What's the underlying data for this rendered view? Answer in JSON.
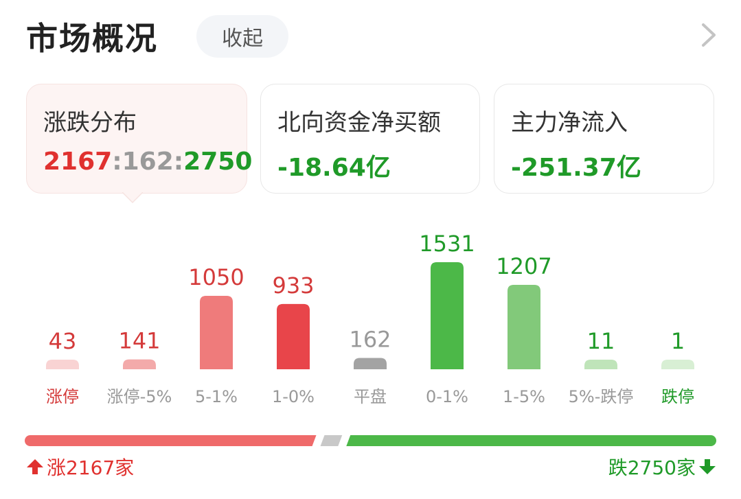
{
  "header": {
    "title": "市场概况",
    "collapse_label": "收起"
  },
  "cards": [
    {
      "label": "涨跌分布",
      "up": "2167",
      "sep1": ":",
      "flat": "162",
      "sep2": ":",
      "down": "2750"
    },
    {
      "label": "北向资金净买额",
      "value": "-18.64亿"
    },
    {
      "label": "主力净流入",
      "value": "-251.37亿"
    }
  ],
  "chart_data": {
    "type": "bar",
    "categories": [
      "涨停",
      "涨停-5%",
      "5-1%",
      "1-0%",
      "平盘",
      "0-1%",
      "1-5%",
      "5%-跌停",
      "跌停"
    ],
    "values": [
      43,
      141,
      1050,
      933,
      162,
      1531,
      1207,
      11,
      1
    ],
    "bar_colors": [
      "#f9d3d3",
      "#f3aaaa",
      "#ef7b7b",
      "#e8454a",
      "#a3a3a3",
      "#4cb848",
      "#82c97a",
      "#bfe4b9",
      "#d8efd4"
    ],
    "label_colors": [
      "#d43a3a",
      "#d43a3a",
      "#d43a3a",
      "#d43a3a",
      "#999999",
      "#1f9a28",
      "#1f9a28",
      "#1f9a28",
      "#1f9a28"
    ],
    "category_colors": [
      "#d43a3a",
      "#999999",
      "#999999",
      "#999999",
      "#999999",
      "#999999",
      "#999999",
      "#999999",
      "#1f9a28"
    ]
  },
  "summary": {
    "up_text": "涨2167家",
    "down_text": "跌2750家",
    "up_count": 2167,
    "flat_count": 162,
    "down_count": 2750,
    "up_color": "#ef6a6a",
    "flat_color": "#c8c8c8",
    "down_color": "#4cb848"
  }
}
